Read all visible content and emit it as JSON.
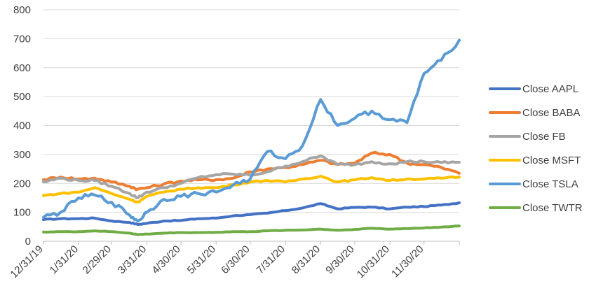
{
  "chart_data": {
    "type": "line",
    "title": "",
    "xlabel": "",
    "ylabel": "",
    "ylim": [
      0,
      800
    ],
    "y_ticks": [
      0,
      100,
      200,
      300,
      400,
      500,
      600,
      700,
      800
    ],
    "x_tick_labels": [
      "12/31/19",
      "1/31/20",
      "2/29/20",
      "3/31/20",
      "4/30/20",
      "5/31/20",
      "6/30/20",
      "7/31/20",
      "8/31/20",
      "9/30/20",
      "10/31/20",
      "11/30/20"
    ],
    "grid": "horizontal",
    "legend_position": "right",
    "x": [
      "2019-12-31",
      "2020-01-15",
      "2020-01-31",
      "2020-02-14",
      "2020-02-29",
      "2020-03-16",
      "2020-03-23",
      "2020-03-31",
      "2020-04-15",
      "2020-04-30",
      "2020-05-15",
      "2020-05-31",
      "2020-06-15",
      "2020-06-30",
      "2020-07-15",
      "2020-07-31",
      "2020-08-15",
      "2020-08-31",
      "2020-09-15",
      "2020-09-30",
      "2020-10-15",
      "2020-10-31",
      "2020-11-15",
      "2020-11-30",
      "2020-12-15",
      "2020-12-31"
    ],
    "series": [
      {
        "name": "Close AAPL",
        "color": "#4472C4",
        "values": [
          75,
          78,
          78,
          80,
          70,
          65,
          58,
          62,
          70,
          72,
          78,
          80,
          88,
          92,
          97,
          106,
          115,
          130,
          112,
          117,
          118,
          112,
          118,
          120,
          125,
          133
        ]
      },
      {
        "name": "Close BABA",
        "color": "#ED7D31",
        "values": [
          213,
          222,
          215,
          218,
          205,
          190,
          180,
          185,
          198,
          208,
          212,
          213,
          218,
          240,
          250,
          255,
          265,
          280,
          265,
          270,
          305,
          300,
          270,
          265,
          255,
          235
        ]
      },
      {
        "name": "Close FB",
        "color": "#A5A5A5",
        "values": [
          205,
          218,
          210,
          210,
          190,
          165,
          150,
          170,
          185,
          200,
          220,
          230,
          232,
          228,
          240,
          260,
          275,
          295,
          265,
          265,
          275,
          268,
          275,
          275,
          272,
          273
        ]
      },
      {
        "name": "Close MSFT",
        "color": "#FFC000",
        "values": [
          158,
          165,
          170,
          185,
          165,
          145,
          135,
          155,
          170,
          180,
          185,
          185,
          195,
          205,
          210,
          205,
          215,
          225,
          205,
          212,
          220,
          210,
          215,
          215,
          218,
          222
        ]
      },
      {
        "name": "Close TSLA",
        "color": "#5B9BD5",
        "values": [
          83,
          100,
          150,
          160,
          135,
          90,
          70,
          100,
          145,
          155,
          165,
          170,
          195,
          215,
          310,
          285,
          330,
          490,
          400,
          425,
          450,
          420,
          410,
          580,
          625,
          695
        ]
      },
      {
        "name": "Close TWTR",
        "color": "#70AD47",
        "values": [
          32,
          33,
          33,
          36,
          33,
          28,
          23,
          25,
          28,
          30,
          30,
          31,
          33,
          33,
          36,
          38,
          39,
          42,
          38,
          41,
          45,
          42,
          44,
          46,
          49,
          53
        ]
      }
    ]
  }
}
